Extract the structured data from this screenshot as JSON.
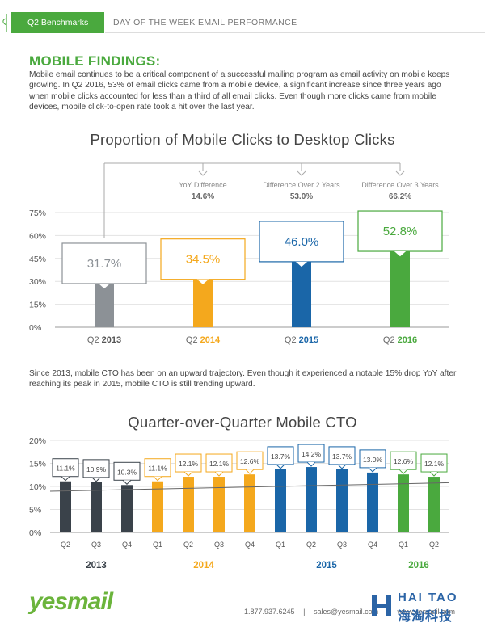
{
  "header": {
    "tab_label": "Q2 Benchmarks",
    "title": "DAY OF THE WEEK EMAIL PERFORMANCE"
  },
  "findings": {
    "title": "MOBILE FINDINGS:",
    "intro": "Mobile email continues to be a critical component of a successful mailing program as email activity on mobile keeps growing. In Q2 2016, 53% of email clicks came from a mobile device, a significant increase since three years ago when mobile clicks accounted for less than a third of all email clicks. Even though more clicks came from mobile devices, mobile click-to-open rate took a hit over the last year.",
    "mid_text": "Since 2013, mobile CTO has been on an upward trajectory. Even though it experienced a notable 15% drop YoY after reaching its peak in 2015, mobile CTO is still trending upward."
  },
  "chart_data": [
    {
      "type": "bar",
      "title": "Proportion of Mobile Clicks to Desktop Clicks",
      "categories": [
        {
          "prefix": "Q2",
          "year": "2013"
        },
        {
          "prefix": "Q2",
          "year": "2014"
        },
        {
          "prefix": "Q2",
          "year": "2015"
        },
        {
          "prefix": "Q2",
          "year": "2016"
        }
      ],
      "values": [
        31.7,
        34.5,
        46.0,
        52.8
      ],
      "value_labels": [
        "31.7%",
        "34.5%",
        "46.0%",
        "52.8%"
      ],
      "colors": [
        "#8c9196",
        "#f4a81d",
        "#1a66a8",
        "#4aa93e"
      ],
      "yticks": [
        "0%",
        "15%",
        "30%",
        "45%",
        "60%",
        "75%"
      ],
      "ylim": [
        0,
        75
      ],
      "grid": true,
      "annotations": [
        {
          "label": "YoY Difference",
          "value": "14.6%",
          "from": 0,
          "to": 1
        },
        {
          "label": "Difference Over 2 Years",
          "value": "53.0%",
          "from": 0,
          "to": 2
        },
        {
          "label": "Difference Over 3 Years",
          "value": "66.2%",
          "from": 0,
          "to": 3
        }
      ]
    },
    {
      "type": "bar",
      "title": "Quarter-over-Quarter Mobile CTO",
      "categories": [
        "Q2",
        "Q3",
        "Q4",
        "Q1",
        "Q2",
        "Q3",
        "Q4",
        "Q1",
        "Q2",
        "Q3",
        "Q4",
        "Q1",
        "Q2"
      ],
      "values": [
        11.1,
        10.9,
        10.3,
        11.1,
        12.1,
        12.1,
        12.6,
        13.7,
        14.2,
        13.7,
        13.0,
        12.6,
        12.1
      ],
      "value_labels": [
        "11.1%",
        "10.9%",
        "10.3%",
        "11.1%",
        "12.1%",
        "12.1%",
        "12.6%",
        "13.7%",
        "14.2%",
        "13.7%",
        "13.0%",
        "12.6%",
        "12.1%"
      ],
      "groups": [
        {
          "year": "2013",
          "start": 0,
          "end": 2,
          "color": "#3a424a"
        },
        {
          "year": "2014",
          "start": 3,
          "end": 6,
          "color": "#f4a81d"
        },
        {
          "year": "2015",
          "start": 7,
          "end": 10,
          "color": "#1a66a8"
        },
        {
          "year": "2016",
          "start": 11,
          "end": 12,
          "color": "#4aa93e"
        }
      ],
      "yticks": [
        "0%",
        "5%",
        "10%",
        "15%",
        "20%"
      ],
      "ylim": [
        0,
        20
      ],
      "grid": true,
      "trendline": [
        10.0,
        10.45
      ]
    }
  ],
  "footer": {
    "logo": "yesmail",
    "phone": "1.877.937.6245",
    "separator": "|",
    "email": "sales@yesmail.com",
    "website": "www.yesmail.com",
    "watermark_top": "HAI TAO",
    "watermark_bottom": "海淘科技"
  }
}
